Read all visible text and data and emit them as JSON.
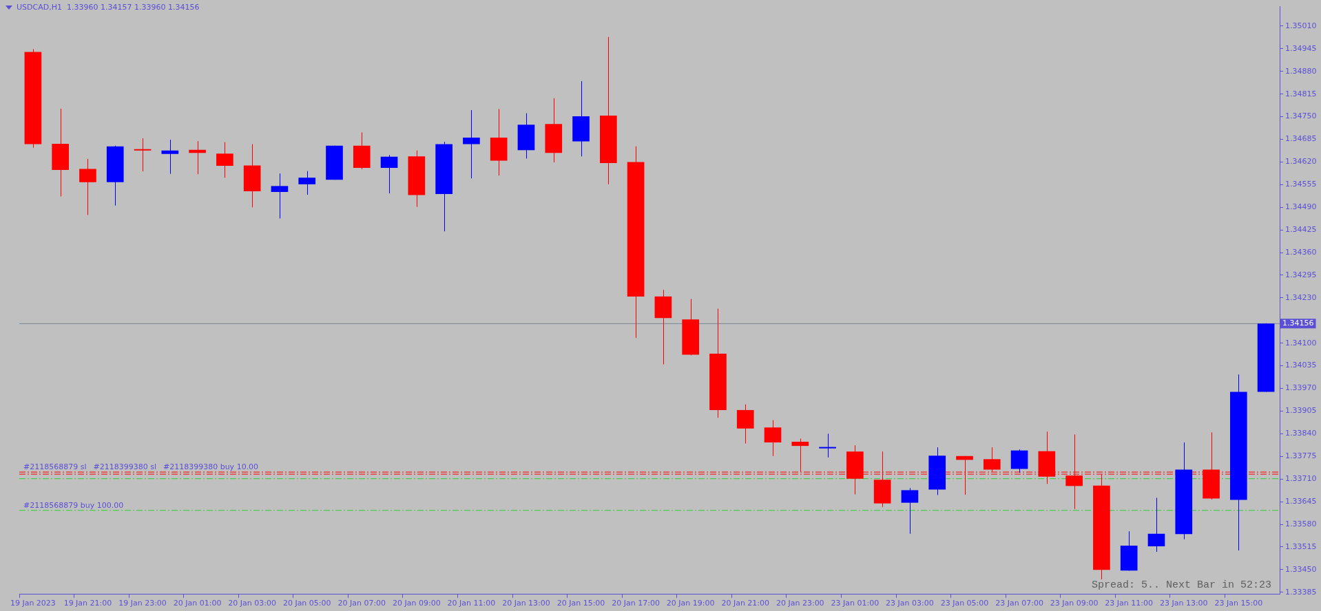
{
  "chart_data": {
    "type": "candlestick",
    "title": "USDCAD,H1",
    "subtitle": "1.33960 1.34157 1.33960 1.34156",
    "categories": [
      "19 Jan 2023",
      null,
      "19 Jan 21:00",
      null,
      "19 Jan 23:00",
      null,
      "20 Jan 01:00",
      null,
      "20 Jan 03:00",
      null,
      "20 Jan 05:00",
      null,
      "20 Jan 07:00",
      null,
      "20 Jan 09:00",
      null,
      "20 Jan 11:00",
      null,
      "20 Jan 13:00",
      null,
      "20 Jan 15:00",
      null,
      "20 Jan 17:00",
      null,
      "20 Jan 19:00",
      null,
      "20 Jan 21:00",
      null,
      "20 Jan 23:00",
      null,
      "23 Jan 01:00",
      null,
      "23 Jan 03:00",
      null,
      "23 Jan 05:00",
      null,
      "23 Jan 07:00",
      null,
      "23 Jan 09:00",
      null,
      "23 Jan 11:00",
      null,
      "23 Jan 13:00",
      null,
      "23 Jan 15:00",
      null
    ],
    "ohlc": [
      [
        1.34936,
        1.34944,
        1.34661,
        1.34671
      ],
      [
        1.34672,
        1.34773,
        1.34521,
        1.34597
      ],
      [
        1.346,
        1.34629,
        1.34468,
        1.34562
      ],
      [
        1.34562,
        1.34667,
        1.34495,
        1.34665
      ],
      [
        1.34654,
        1.34688,
        1.34593,
        1.34653
      ],
      [
        1.34643,
        1.34684,
        1.34586,
        1.34653
      ],
      [
        1.34655,
        1.3468,
        1.34585,
        1.34646
      ],
      [
        1.34644,
        1.34677,
        1.34575,
        1.34609
      ],
      [
        1.3461,
        1.34671,
        1.3449,
        1.34536
      ],
      [
        1.34534,
        1.34587,
        1.34458,
        1.34551
      ],
      [
        1.34556,
        1.34594,
        1.34526,
        1.34575
      ],
      [
        1.34569,
        1.34667,
        1.34569,
        1.34667
      ],
      [
        1.34667,
        1.34705,
        1.34599,
        1.34603
      ],
      [
        1.34603,
        1.3464,
        1.3453,
        1.34635
      ],
      [
        1.34636,
        1.34653,
        1.34491,
        1.34525
      ],
      [
        1.34528,
        1.34678,
        1.34421,
        1.34671
      ],
      [
        1.34671,
        1.34769,
        1.34573,
        1.3469
      ],
      [
        1.3469,
        1.34772,
        1.34581,
        1.34624
      ],
      [
        1.34654,
        1.3476,
        1.3463,
        1.34727
      ],
      [
        1.34729,
        1.34803,
        1.34619,
        1.34646
      ],
      [
        1.34679,
        1.34852,
        1.34636,
        1.34751
      ],
      [
        1.34753,
        1.34979,
        1.34556,
        1.34617
      ],
      [
        1.3462,
        1.34665,
        1.34115,
        1.34234
      ],
      [
        1.34234,
        1.34253,
        1.34039,
        1.34172
      ],
      [
        1.34168,
        1.34227,
        1.34065,
        1.34067
      ],
      [
        1.3407,
        1.34199,
        1.33886,
        1.33908
      ],
      [
        1.33908,
        1.33924,
        1.33812,
        1.33855
      ],
      [
        1.33858,
        1.33879,
        1.33776,
        1.33815
      ],
      [
        1.33817,
        1.33826,
        1.33731,
        1.33805
      ],
      [
        1.33798,
        1.3384,
        1.33772,
        1.33802
      ],
      [
        1.33789,
        1.33807,
        1.33666,
        1.33711
      ],
      [
        1.33708,
        1.33789,
        1.3363,
        1.3364
      ],
      [
        1.33642,
        1.33684,
        1.33553,
        1.33678
      ],
      [
        1.3368,
        1.33801,
        1.33664,
        1.33777
      ],
      [
        1.33776,
        1.33776,
        1.33665,
        1.33765
      ],
      [
        1.33767,
        1.33801,
        1.33731,
        1.33737
      ],
      [
        1.33739,
        1.33795,
        1.33728,
        1.33792
      ],
      [
        1.3379,
        1.33846,
        1.33696,
        1.33717
      ],
      [
        1.3372,
        1.33838,
        1.33624,
        1.3369
      ],
      [
        1.33691,
        1.33723,
        1.33422,
        1.33449
      ],
      [
        1.33447,
        1.3356,
        1.33447,
        1.33519
      ],
      [
        1.33517,
        1.33656,
        1.33501,
        1.33553
      ],
      [
        1.33552,
        1.33815,
        1.33537,
        1.33737
      ],
      [
        1.33737,
        1.33844,
        1.33651,
        1.33654
      ],
      [
        1.3365,
        1.3401,
        1.33505,
        1.3396
      ],
      [
        1.3396,
        1.34157,
        1.3396,
        1.34156
      ]
    ],
    "colors": [
      "#ff0000",
      "#ff0000",
      "#ff0000",
      "#0000ff",
      "#ff0000",
      "#0000ff",
      "#ff0000",
      "#ff0000",
      "#ff0000",
      "#0000ff",
      "#0000ff",
      "#0000ff",
      "#ff0000",
      "#0000ff",
      "#ff0000",
      "#0000ff",
      "#0000ff",
      "#ff0000",
      "#0000ff",
      "#ff0000",
      "#0000ff",
      "#ff0000",
      "#ff0000",
      "#ff0000",
      "#ff0000",
      "#ff0000",
      "#ff0000",
      "#ff0000",
      "#ff0000",
      "#0000ff",
      "#ff0000",
      "#ff0000",
      "#0000ff",
      "#0000ff",
      "#ff0000",
      "#ff0000",
      "#0000ff",
      "#ff0000",
      "#ff0000",
      "#ff0000",
      "#0000ff",
      "#0000ff",
      "#0000ff",
      "#ff0000",
      "#0000ff",
      "#0000ff"
    ],
    "ylim": [
      1.33379,
      1.35066
    ],
    "yticks": [
      1.33385,
      {
        "value": 1.3345,
        "label": "1.33450"
      },
      1.33515,
      {
        "value": 1.3358,
        "label": "1.33580"
      },
      1.33645,
      {
        "value": 1.3371,
        "label": "1.33710"
      },
      1.33775,
      {
        "value": 1.3384,
        "label": "1.33840"
      },
      1.33905,
      {
        "value": 1.3397,
        "label": "1.33970"
      },
      1.34035,
      {
        "value": 1.341,
        "label": "1.34100"
      },
      {
        "value": 1.34165,
        "label": null
      },
      {
        "value": 1.3423,
        "label": "1.34230"
      },
      1.34295,
      {
        "value": 1.3436,
        "label": "1.34360"
      },
      1.34425,
      {
        "value": 1.3449,
        "label": "1.34490"
      },
      1.34555,
      {
        "value": 1.3462,
        "label": "1.34620"
      },
      1.34685,
      {
        "value": 1.3475,
        "label": "1.34750"
      },
      1.34815,
      {
        "value": 1.3488,
        "label": "1.34880"
      },
      1.34945,
      {
        "value": 1.3501,
        "label": "1.35010"
      }
    ],
    "ref_lines": [
      {
        "axis": "y",
        "value": 1.34156,
        "label": "1.34156",
        "color": "#778899",
        "line_style": "solid"
      },
      {
        "axis": "y",
        "value": 1.3373,
        "label": "#2118568879 sl",
        "color": "#ff0000",
        "line_style": "dashed"
      },
      {
        "axis": "y",
        "value": 1.33724,
        "label": "#2118399380 sl",
        "color": "#ff0000",
        "line_style": "dashed"
      },
      {
        "axis": "y",
        "value": 1.33711,
        "label": "#2118399380 buy 10.00",
        "color": "#32cd32",
        "line_style": "dashed"
      },
      {
        "axis": "y",
        "value": 1.3362,
        "label": "#2118568879 buy 100.00",
        "color": "#32cd32",
        "line_style": "dashed"
      }
    ],
    "annotations": [
      "Spread: 5.. Next Bar in 52:23"
    ],
    "grid": false,
    "legend": false
  }
}
